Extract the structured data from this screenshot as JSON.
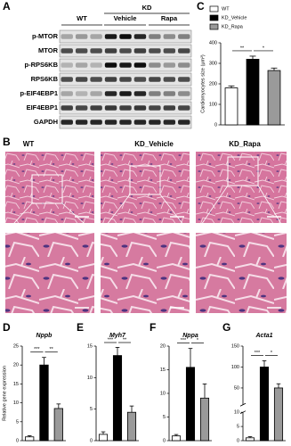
{
  "panel_labels": [
    "A",
    "B",
    "C",
    "D",
    "E",
    "F",
    "G"
  ],
  "blot": {
    "group_header": "KD",
    "columns": [
      "WT",
      "Vehicle",
      "Rapa"
    ],
    "rows": [
      "p-MTOR",
      "MTOR",
      "p-RPS6KB",
      "RPS6KB",
      "p-EIF4EBP1",
      "EIF4EBP1",
      "GAPDH"
    ]
  },
  "histology": {
    "columns": [
      "WT",
      "KD_Vehicle",
      "KD_Rapa"
    ]
  },
  "chart_data": [
    {
      "type": "bar",
      "y_label": "Cardiomyocytes size (μm²)",
      "categories": [
        "WT",
        "KD_Vehicle",
        "KD_Rapa"
      ],
      "colors": [
        "#ffffff",
        "#000000",
        "#9a9a9a"
      ],
      "values": [
        180,
        320,
        265
      ],
      "errors": [
        10,
        15,
        12
      ],
      "ylim": [
        0,
        400
      ],
      "yticks": [
        0,
        100,
        200,
        300,
        400
      ],
      "significance": [
        "**",
        "*"
      ],
      "legend": "top-left"
    },
    {
      "type": "bar",
      "title": "Nppb",
      "y_label": "Relative gene expression",
      "categories": [
        null,
        null,
        null
      ],
      "colors": [
        "#ffffff",
        "#000000",
        "#9a9a9a"
      ],
      "values": [
        1,
        20,
        8.5
      ],
      "errors": [
        0.3,
        2,
        1.2
      ],
      "ylim": [
        0,
        25
      ],
      "yticks": [
        0,
        5,
        10,
        15,
        20,
        25
      ],
      "significance": [
        "***",
        "**"
      ]
    },
    {
      "type": "bar",
      "title": "Myh7",
      "categories": [
        null,
        null,
        null
      ],
      "colors": [
        "#ffffff",
        "#000000",
        "#9a9a9a"
      ],
      "values": [
        1,
        13.5,
        4.5
      ],
      "errors": [
        0.4,
        1.3,
        1
      ],
      "ylim": [
        0,
        15
      ],
      "yticks": [
        0,
        5,
        10,
        15
      ],
      "significance": [
        "***",
        "**"
      ]
    },
    {
      "type": "bar",
      "title": "Nppa",
      "categories": [
        null,
        null,
        null
      ],
      "colors": [
        "#ffffff",
        "#000000",
        "#9a9a9a"
      ],
      "values": [
        1,
        15.5,
        9
      ],
      "errors": [
        0.3,
        4,
        3
      ],
      "ylim": [
        0,
        20
      ],
      "yticks": [
        0,
        5,
        10,
        15,
        20
      ],
      "significance": [
        "***",
        "*"
      ]
    },
    {
      "type": "bar",
      "title": "Acta1",
      "categories": [
        null,
        null,
        null
      ],
      "colors": [
        "#ffffff",
        "#000000",
        "#9a9a9a"
      ],
      "values": [
        1,
        100,
        50
      ],
      "errors": [
        0.4,
        15,
        10
      ],
      "ylim": [
        0,
        150
      ],
      "yticks": [
        0,
        5,
        10,
        50,
        100,
        150
      ],
      "axis_break": 10,
      "significance": [
        "***",
        "*"
      ]
    }
  ]
}
